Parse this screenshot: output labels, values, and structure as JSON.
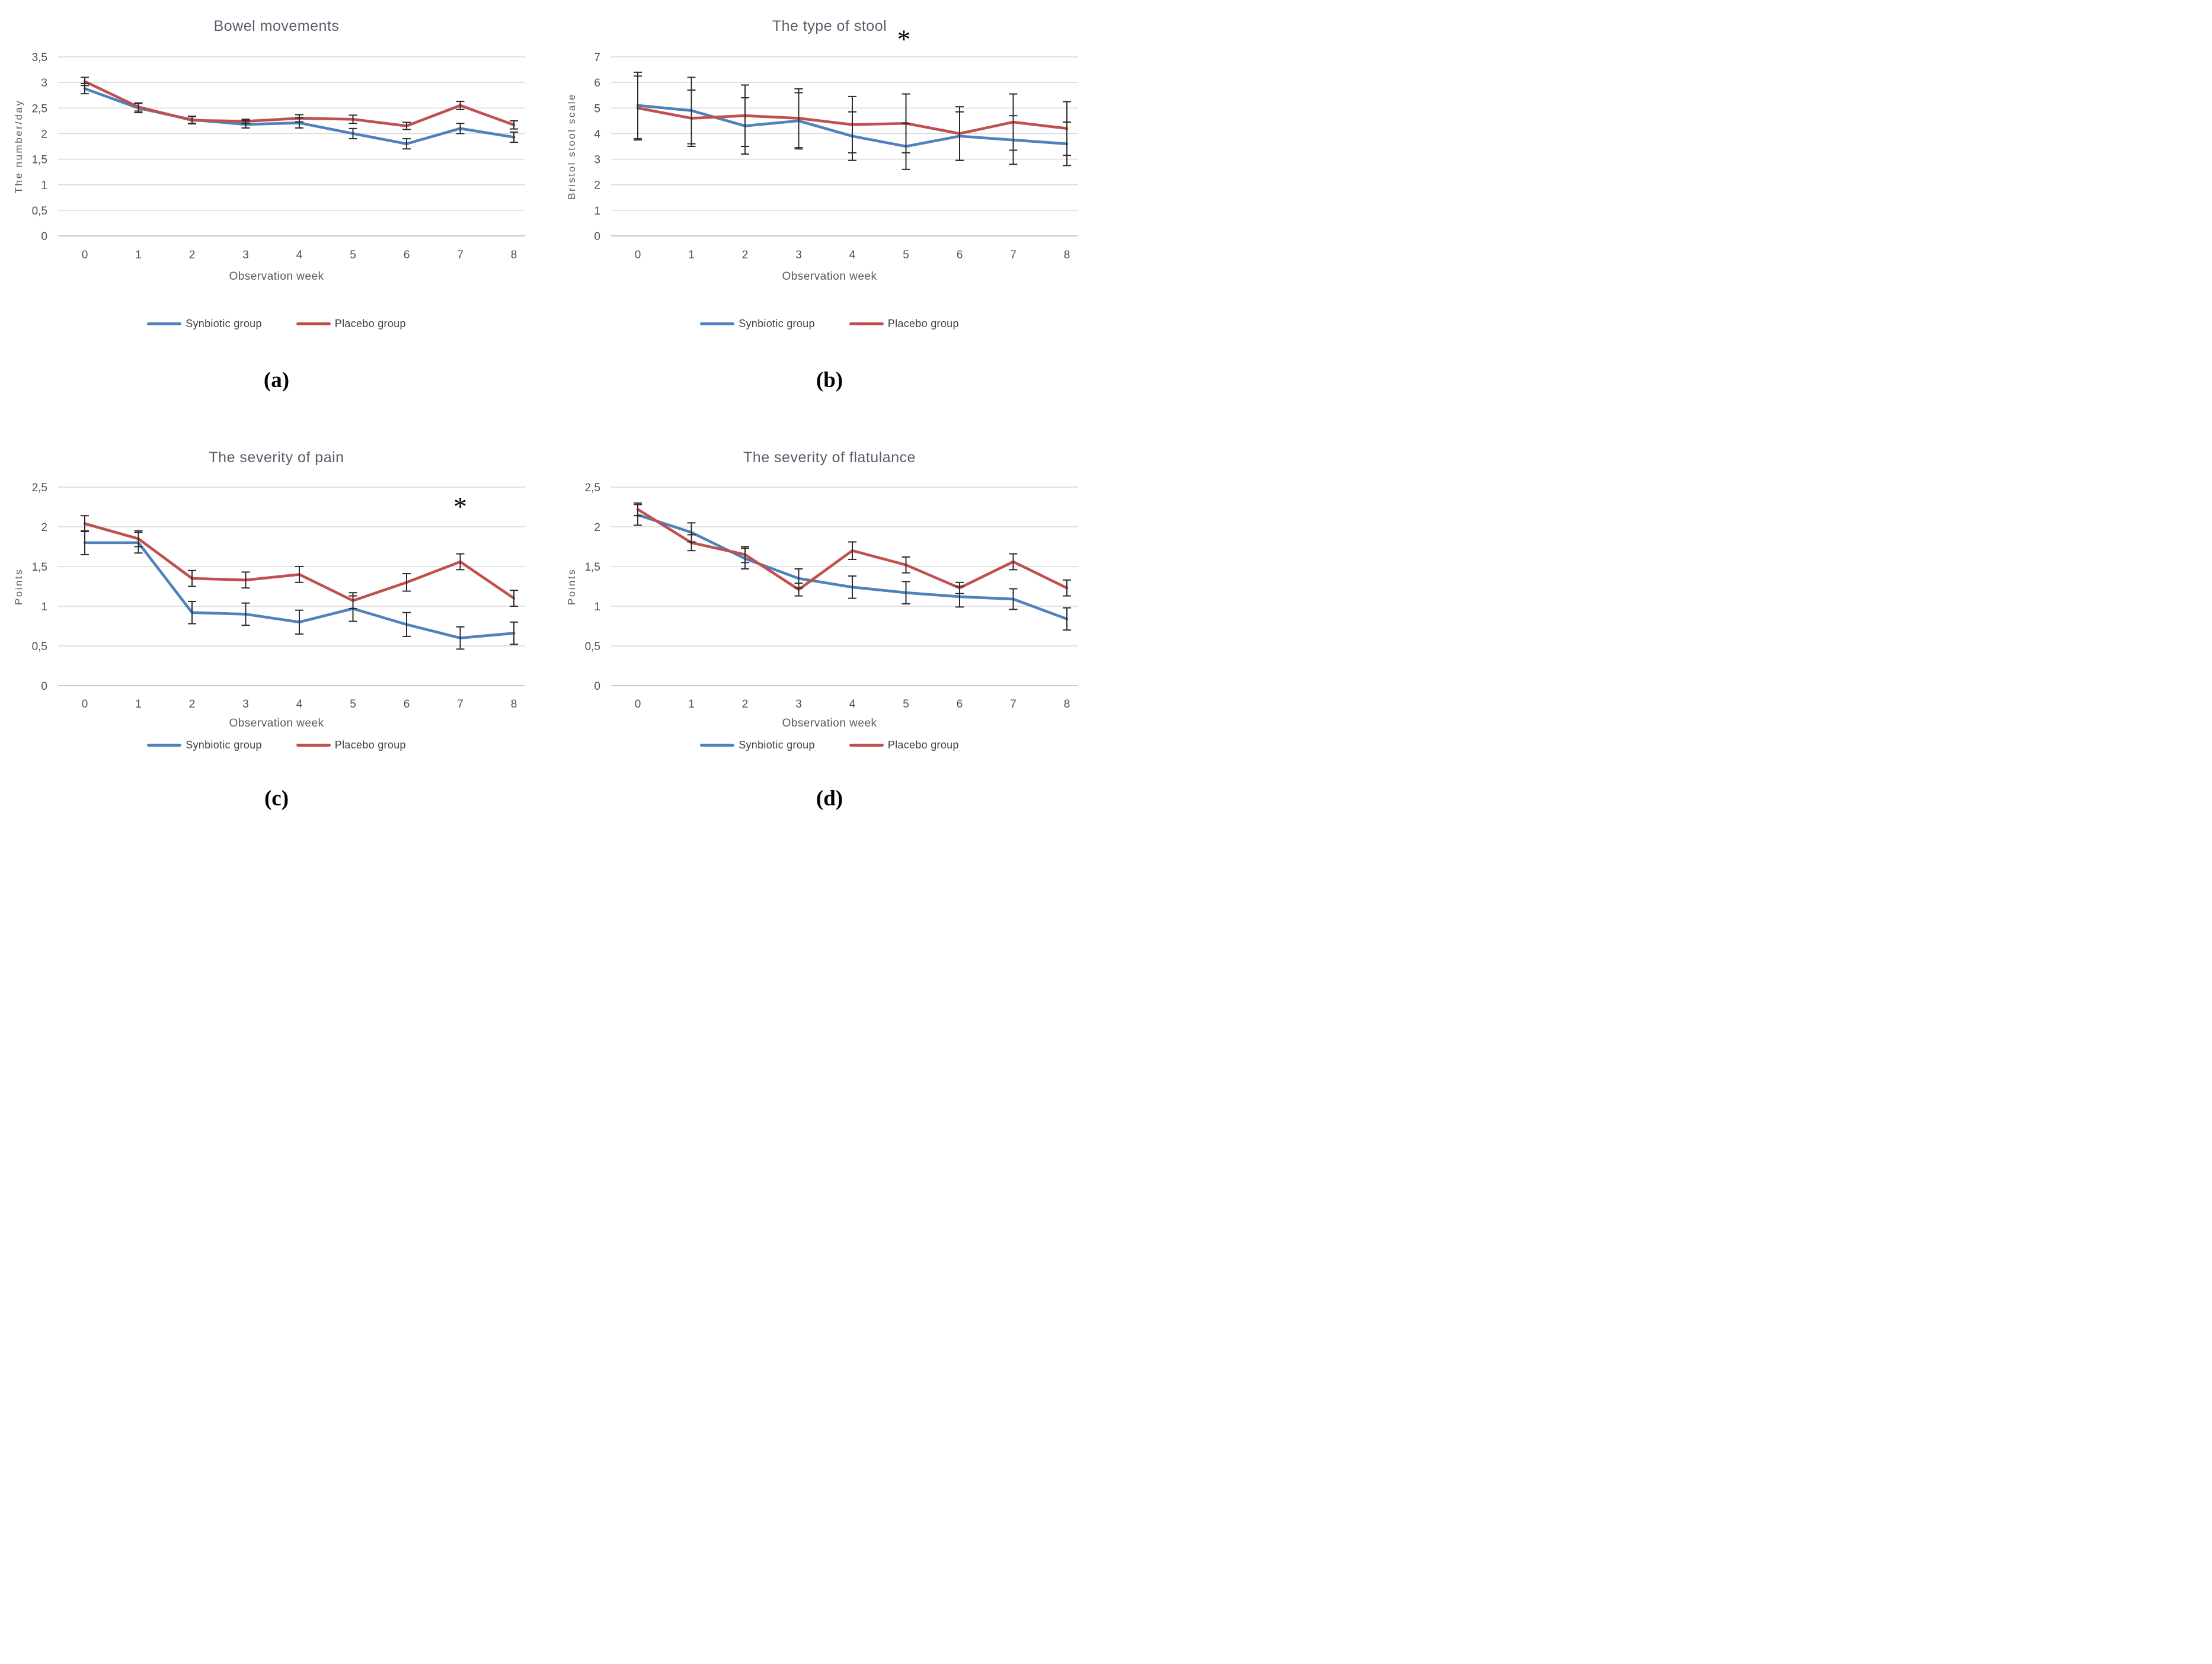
{
  "figure": {
    "background": "#ffffff",
    "layout": "2x2-grid-of-line-charts"
  },
  "colors": {
    "synbiotic_line": "#4F81BD",
    "placebo_line": "#C0504D",
    "gridline": "#D9D9D9",
    "axis_baseline": "#C2C2C2",
    "error_bar": "#2A2A2A",
    "title_text": "#575F6B",
    "tick_text": "#4D4F56",
    "legend_text": "#404040",
    "caption_text": "#000000"
  },
  "chart_data": [
    {
      "type": "line",
      "caption": "(a)",
      "title": "Bowel movements",
      "xlabel": "Observation week",
      "ylabel": "The number/day",
      "grid": "horizontal",
      "legend_position": "bottom",
      "x": [
        0,
        1,
        2,
        3,
        4,
        5,
        6,
        7,
        8
      ],
      "x_tick_labels": [
        "0",
        "1",
        "2",
        "3",
        "4",
        "5",
        "6",
        "7",
        "8"
      ],
      "ylim": [
        0,
        3.5
      ],
      "y_tick_labels": [
        "0",
        "0,5",
        "1",
        "1,5",
        "2",
        "2,5",
        "3",
        "3,5"
      ],
      "series": [
        {
          "name": "Synbiotic group",
          "color": "#4F81BD",
          "values": [
            2.88,
            2.5,
            2.27,
            2.18,
            2.21,
            2.0,
            1.8,
            2.1,
            1.93
          ],
          "errors": [
            0.1,
            0.09,
            0.07,
            0.07,
            0.1,
            0.1,
            0.1,
            0.1,
            0.1
          ]
        },
        {
          "name": "Placebo group",
          "color": "#C0504D",
          "values": [
            3.02,
            2.52,
            2.26,
            2.24,
            2.3,
            2.28,
            2.15,
            2.55,
            2.17
          ],
          "errors": [
            0.08,
            0.08,
            0.07,
            0.04,
            0.07,
            0.08,
            0.07,
            0.08,
            0.08
          ]
        }
      ],
      "annotation": null
    },
    {
      "type": "line",
      "caption": "(b)",
      "title": "The type of stool",
      "xlabel": "Observation week",
      "ylabel": "Bristol stool scale",
      "grid": "horizontal",
      "legend_position": "bottom",
      "x": [
        0,
        1,
        2,
        3,
        4,
        5,
        6,
        7,
        8
      ],
      "x_tick_labels": [
        "0",
        "1",
        "2",
        "3",
        "4",
        "5",
        "6",
        "7",
        "8"
      ],
      "ylim": [
        0,
        7
      ],
      "y_tick_labels": [
        "0",
        "1",
        "2",
        "3",
        "4",
        "5",
        "6",
        "7"
      ],
      "series": [
        {
          "name": "Synbiotic group",
          "color": "#4F81BD",
          "values": [
            5.1,
            4.9,
            4.3,
            4.5,
            3.9,
            3.5,
            3.9,
            3.75,
            3.6
          ],
          "errors": [
            1.3,
            1.3,
            1.1,
            1.1,
            0.95,
            0.9,
            0.95,
            0.95,
            0.85
          ]
        },
        {
          "name": "Placebo group",
          "color": "#C0504D",
          "values": [
            5.0,
            4.6,
            4.7,
            4.6,
            4.35,
            4.4,
            4.0,
            4.45,
            4.2
          ],
          "errors": [
            1.25,
            1.1,
            1.2,
            1.15,
            1.1,
            1.15,
            1.05,
            1.1,
            1.05
          ]
        }
      ],
      "annotation": {
        "text": "*",
        "week": 4.96,
        "value": 7.58,
        "meaning": "significance-marker"
      }
    },
    {
      "type": "line",
      "caption": "(c)",
      "title": "The severity of pain",
      "xlabel": "Observation week",
      "ylabel": "Points",
      "grid": "horizontal",
      "legend_position": "bottom",
      "x": [
        0,
        1,
        2,
        3,
        4,
        5,
        6,
        7,
        8
      ],
      "x_tick_labels": [
        "0",
        "1",
        "2",
        "3",
        "4",
        "5",
        "6",
        "7",
        "8"
      ],
      "ylim": [
        0,
        2.5
      ],
      "y_tick_labels": [
        "0",
        "0,5",
        "1",
        "1,5",
        "2",
        "2,5"
      ],
      "series": [
        {
          "name": "Synbiotic group",
          "color": "#4F81BD",
          "values": [
            1.8,
            1.8,
            0.92,
            0.9,
            0.8,
            0.97,
            0.77,
            0.6,
            0.66
          ],
          "errors": [
            0.15,
            0.13,
            0.14,
            0.14,
            0.15,
            0.16,
            0.15,
            0.14,
            0.14
          ]
        },
        {
          "name": "Placebo group",
          "color": "#C0504D",
          "values": [
            2.04,
            1.85,
            1.35,
            1.33,
            1.4,
            1.07,
            1.3,
            1.56,
            1.1
          ],
          "errors": [
            0.1,
            0.1,
            0.1,
            0.1,
            0.1,
            0.1,
            0.11,
            0.1,
            0.1
          ]
        }
      ],
      "annotation": {
        "text": "*",
        "week": 7.0,
        "value": 2.22,
        "meaning": "significance-marker"
      }
    },
    {
      "type": "line",
      "caption": "(d)",
      "title": "The severity of flatulance",
      "xlabel": "Observation week",
      "ylabel": "Points",
      "grid": "horizontal",
      "legend_position": "bottom",
      "x": [
        0,
        1,
        2,
        3,
        4,
        5,
        6,
        7,
        8
      ],
      "x_tick_labels": [
        "0",
        "1",
        "2",
        "3",
        "4",
        "5",
        "6",
        "7",
        "8"
      ],
      "ylim": [
        0,
        2.5
      ],
      "y_tick_labels": [
        "0",
        "0,5",
        "1",
        "1,5",
        "2",
        "2,5"
      ],
      "series": [
        {
          "name": "Synbiotic group",
          "color": "#4F81BD",
          "values": [
            2.15,
            1.93,
            1.6,
            1.35,
            1.24,
            1.17,
            1.12,
            1.09,
            0.84
          ],
          "errors": [
            0.13,
            0.12,
            0.13,
            0.12,
            0.14,
            0.14,
            0.13,
            0.13,
            0.14
          ]
        },
        {
          "name": "Placebo group",
          "color": "#C0504D",
          "values": [
            2.22,
            1.8,
            1.65,
            1.21,
            1.7,
            1.52,
            1.23,
            1.56,
            1.23
          ],
          "errors": [
            0.08,
            0.1,
            0.1,
            0.08,
            0.11,
            0.1,
            0.07,
            0.1,
            0.1
          ]
        }
      ],
      "annotation": null
    }
  ]
}
